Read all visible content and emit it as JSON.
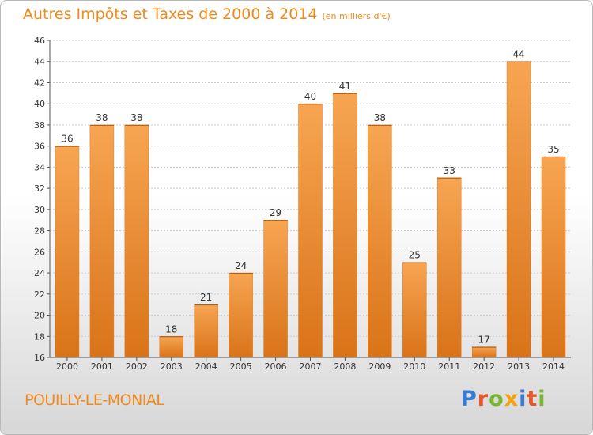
{
  "title": {
    "main": "Autres Impôts et Taxes de 2000 à 2014",
    "unit": "(en milliers d'€)"
  },
  "commune": "POUILLY-LE-MONIAL",
  "logo": {
    "text": "Proxiti"
  },
  "colors": {
    "accent": "#f08a1c",
    "bar_light": "#f7a552",
    "bar_dark": "#d97318",
    "grid": "#cccccc",
    "axis": "#555555"
  },
  "chart_data": {
    "type": "bar",
    "title": "Autres Impôts et Taxes de 2000 à 2014",
    "subtitle": "(en milliers d'€)",
    "xlabel": "",
    "ylabel": "",
    "categories": [
      "2000",
      "2001",
      "2002",
      "2003",
      "2004",
      "2005",
      "2006",
      "2007",
      "2008",
      "2009",
      "2010",
      "2011",
      "2012",
      "2013",
      "2014"
    ],
    "values": [
      36,
      38,
      38,
      18,
      21,
      24,
      29,
      40,
      41,
      38,
      25,
      33,
      17,
      44,
      35
    ],
    "ylim": [
      16,
      46
    ],
    "yticks": [
      16,
      18,
      20,
      22,
      24,
      26,
      28,
      30,
      32,
      34,
      36,
      38,
      40,
      42,
      44,
      46
    ],
    "grid": true,
    "data_labels": true
  }
}
